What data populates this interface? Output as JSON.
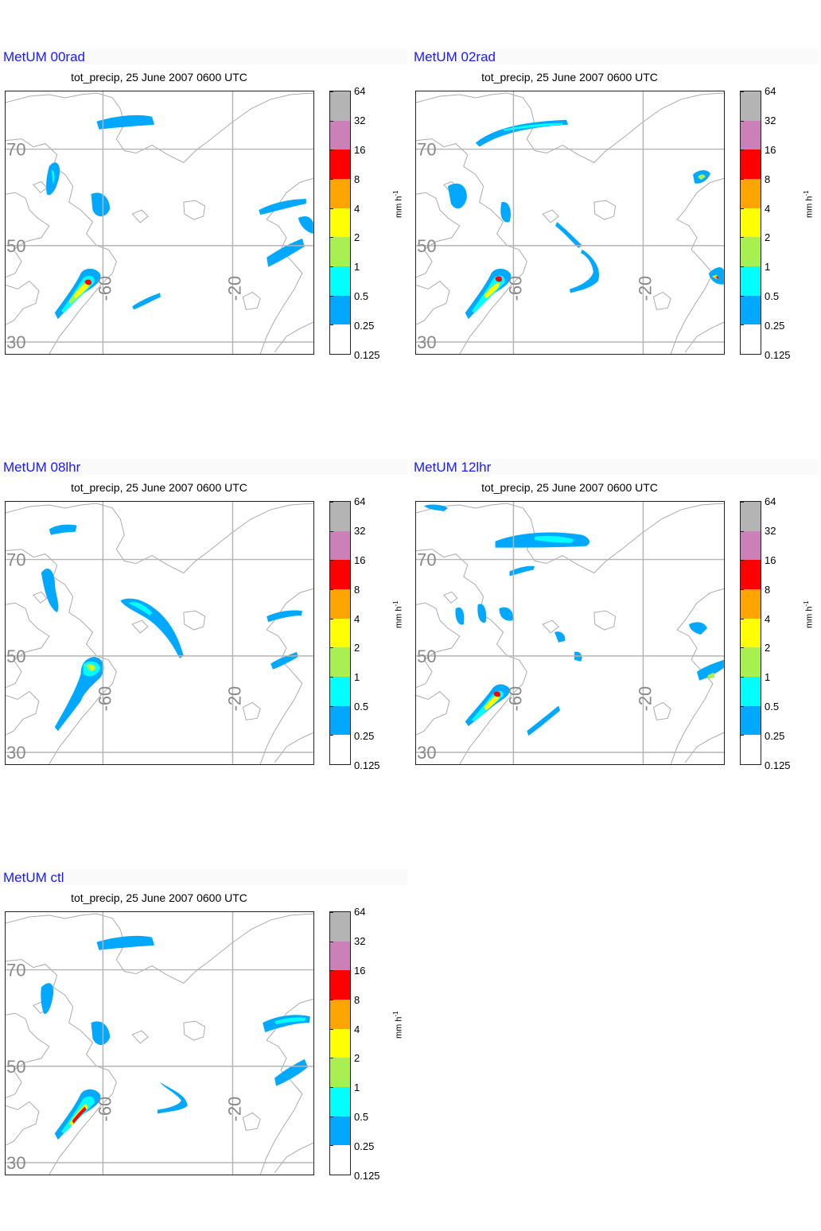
{
  "panels": [
    {
      "model": "MetUM 00rad",
      "subtitle": "tot_precip, 25 June 2007 0600 UTC"
    },
    {
      "model": "MetUM 02rad",
      "subtitle": "tot_precip, 25 June 2007 0600 UTC"
    },
    {
      "model": "MetUM 08lhr",
      "subtitle": "tot_precip, 25 June 2007 0600 UTC"
    },
    {
      "model": "MetUM 12lhr",
      "subtitle": "tot_precip, 25 June 2007 0600 UTC"
    },
    {
      "model": "MetUM ctl",
      "subtitle": "tot_precip, 25 June 2007 0600 UTC"
    }
  ],
  "map": {
    "lat_labels": [
      "70",
      "50",
      "30"
    ],
    "lon_labels": [
      "-60",
      "-20"
    ]
  },
  "colorbar": {
    "unit": "mm h",
    "unit_exponent": "-1",
    "levels": [
      "64",
      "32",
      "16",
      "8",
      "4",
      "2",
      "1",
      "0.5",
      "0.25",
      "0.125"
    ],
    "colors": [
      "#b4b4b4",
      "#cc80b8",
      "#ff0000",
      "#ffa500",
      "#ffff00",
      "#a8f050",
      "#00ffff",
      "#00a8ff",
      "#ffffff"
    ]
  }
}
